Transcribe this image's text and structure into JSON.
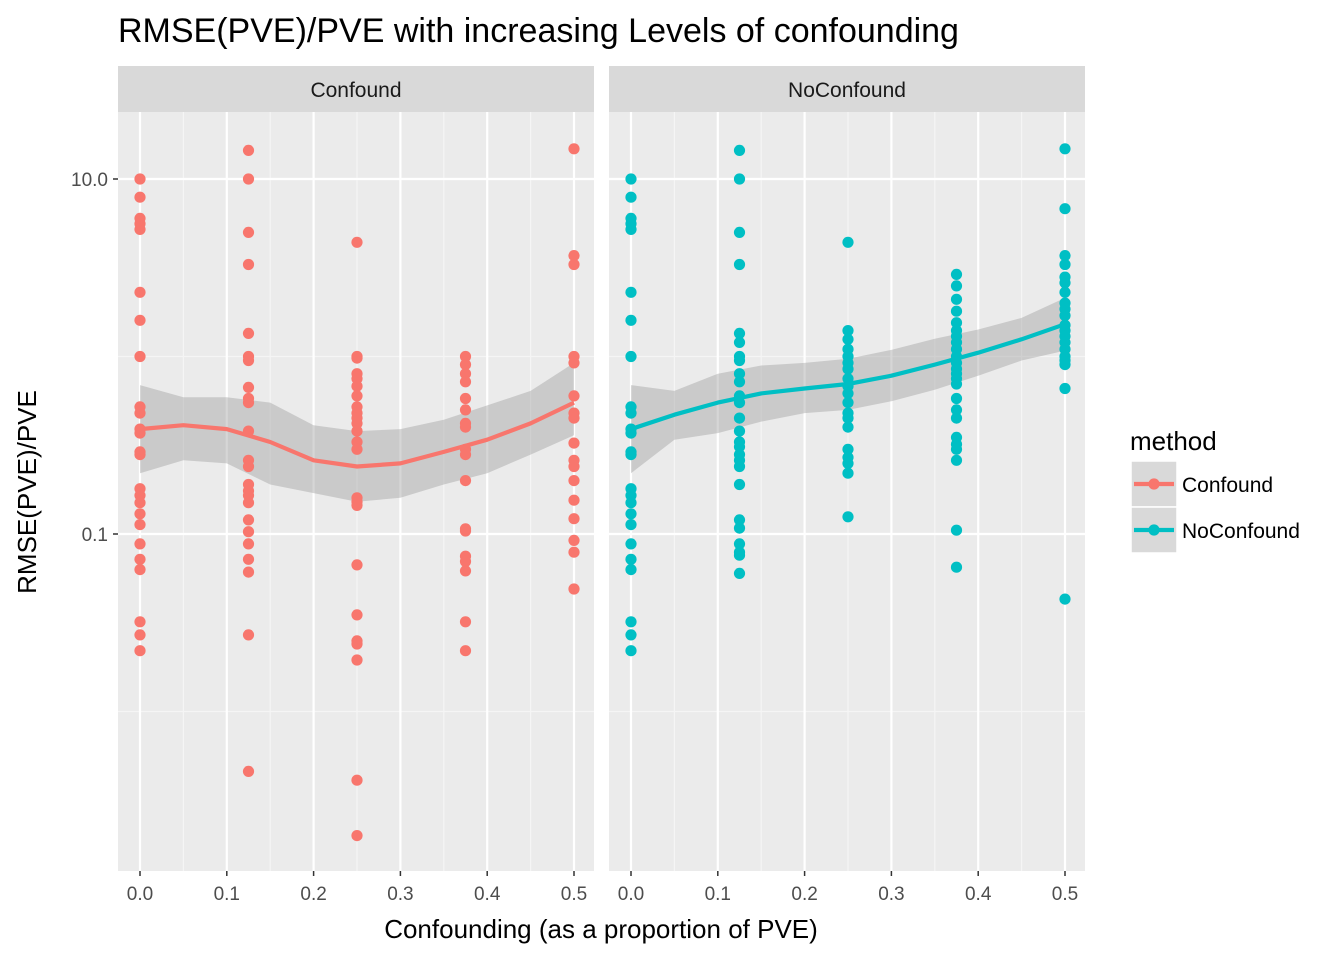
{
  "chart_data": {
    "type": "scatter",
    "title": "RMSE(PVE)/PVE with increasing Levels of confounding",
    "xlabel": "Confounding (as a proportion of PVE)",
    "ylabel": "RMSE(PVE)/PVE",
    "y_scale": "log10",
    "ylim": [
      0.0017,
      20
    ],
    "xlim": [
      -0.025,
      0.525
    ],
    "x_ticks": [
      "0.0",
      "0.1",
      "0.2",
      "0.3",
      "0.4",
      "0.5"
    ],
    "y_ticks": [
      "10.0",
      "0.1"
    ],
    "grid": true,
    "smooth_trend": true,
    "legend": {
      "title": "method",
      "position": "right"
    },
    "colors": {
      "Confound": "#F8766D",
      "NoConfound": "#00BFC4"
    },
    "panels": [
      {
        "label": "Confound",
        "color": "#F8766D",
        "points": [
          {
            "x": 0,
            "y": 10.0
          },
          {
            "x": 0,
            "y": 7.9
          },
          {
            "x": 0,
            "y": 6.0
          },
          {
            "x": 0,
            "y": 5.6
          },
          {
            "x": 0,
            "y": 5.2
          },
          {
            "x": 0,
            "y": 2.3
          },
          {
            "x": 0,
            "y": 1.6
          },
          {
            "x": 0,
            "y": 1.0
          },
          {
            "x": 0,
            "y": 0.52
          },
          {
            "x": 0,
            "y": 0.48
          },
          {
            "x": 0,
            "y": 0.39
          },
          {
            "x": 0,
            "y": 0.37
          },
          {
            "x": 0,
            "y": 0.29
          },
          {
            "x": 0,
            "y": 0.28
          },
          {
            "x": 0,
            "y": 0.18
          },
          {
            "x": 0,
            "y": 0.165
          },
          {
            "x": 0,
            "y": 0.15
          },
          {
            "x": 0,
            "y": 0.13
          },
          {
            "x": 0,
            "y": 0.113
          },
          {
            "x": 0,
            "y": 0.088
          },
          {
            "x": 0,
            "y": 0.072
          },
          {
            "x": 0,
            "y": 0.063
          },
          {
            "x": 0,
            "y": 0.032
          },
          {
            "x": 0,
            "y": 0.027
          },
          {
            "x": 0,
            "y": 0.022
          },
          {
            "x": 0.125,
            "y": 14.5
          },
          {
            "x": 0.125,
            "y": 10.0
          },
          {
            "x": 0.125,
            "y": 5.0
          },
          {
            "x": 0.125,
            "y": 3.3
          },
          {
            "x": 0.125,
            "y": 1.35
          },
          {
            "x": 0.125,
            "y": 1.0
          },
          {
            "x": 0.125,
            "y": 0.95
          },
          {
            "x": 0.125,
            "y": 0.67
          },
          {
            "x": 0.125,
            "y": 0.58
          },
          {
            "x": 0.125,
            "y": 0.55
          },
          {
            "x": 0.125,
            "y": 0.38
          },
          {
            "x": 0.125,
            "y": 0.26
          },
          {
            "x": 0.125,
            "y": 0.24
          },
          {
            "x": 0.125,
            "y": 0.19
          },
          {
            "x": 0.125,
            "y": 0.175
          },
          {
            "x": 0.125,
            "y": 0.165
          },
          {
            "x": 0.125,
            "y": 0.15
          },
          {
            "x": 0.125,
            "y": 0.12
          },
          {
            "x": 0.125,
            "y": 0.103
          },
          {
            "x": 0.125,
            "y": 0.088
          },
          {
            "x": 0.125,
            "y": 0.072
          },
          {
            "x": 0.125,
            "y": 0.061
          },
          {
            "x": 0.125,
            "y": 0.027
          },
          {
            "x": 0.125,
            "y": 0.0046
          },
          {
            "x": 0.25,
            "y": 4.4
          },
          {
            "x": 0.25,
            "y": 1.0
          },
          {
            "x": 0.25,
            "y": 0.98
          },
          {
            "x": 0.25,
            "y": 0.8
          },
          {
            "x": 0.25,
            "y": 0.75
          },
          {
            "x": 0.25,
            "y": 0.68
          },
          {
            "x": 0.25,
            "y": 0.6
          },
          {
            "x": 0.25,
            "y": 0.52
          },
          {
            "x": 0.25,
            "y": 0.48
          },
          {
            "x": 0.25,
            "y": 0.45
          },
          {
            "x": 0.25,
            "y": 0.42
          },
          {
            "x": 0.25,
            "y": 0.38
          },
          {
            "x": 0.25,
            "y": 0.33
          },
          {
            "x": 0.25,
            "y": 0.3
          },
          {
            "x": 0.25,
            "y": 0.16
          },
          {
            "x": 0.25,
            "y": 0.152
          },
          {
            "x": 0.25,
            "y": 0.145
          },
          {
            "x": 0.25,
            "y": 0.067
          },
          {
            "x": 0.25,
            "y": 0.035
          },
          {
            "x": 0.25,
            "y": 0.025
          },
          {
            "x": 0.25,
            "y": 0.024
          },
          {
            "x": 0.25,
            "y": 0.0195
          },
          {
            "x": 0.25,
            "y": 0.0041
          },
          {
            "x": 0.25,
            "y": 0.002
          },
          {
            "x": 0.375,
            "y": 1.0
          },
          {
            "x": 0.375,
            "y": 0.9
          },
          {
            "x": 0.375,
            "y": 0.8
          },
          {
            "x": 0.375,
            "y": 0.72
          },
          {
            "x": 0.375,
            "y": 0.58
          },
          {
            "x": 0.375,
            "y": 0.5
          },
          {
            "x": 0.375,
            "y": 0.42
          },
          {
            "x": 0.375,
            "y": 0.4
          },
          {
            "x": 0.375,
            "y": 0.3
          },
          {
            "x": 0.375,
            "y": 0.28
          },
          {
            "x": 0.375,
            "y": 0.2
          },
          {
            "x": 0.375,
            "y": 0.107
          },
          {
            "x": 0.375,
            "y": 0.104
          },
          {
            "x": 0.375,
            "y": 0.075
          },
          {
            "x": 0.375,
            "y": 0.07
          },
          {
            "x": 0.375,
            "y": 0.062
          },
          {
            "x": 0.375,
            "y": 0.032
          },
          {
            "x": 0.375,
            "y": 0.022
          },
          {
            "x": 0.5,
            "y": 14.8
          },
          {
            "x": 0.5,
            "y": 3.7
          },
          {
            "x": 0.5,
            "y": 3.3
          },
          {
            "x": 0.5,
            "y": 1.0
          },
          {
            "x": 0.5,
            "y": 0.92
          },
          {
            "x": 0.5,
            "y": 0.6
          },
          {
            "x": 0.5,
            "y": 0.48
          },
          {
            "x": 0.5,
            "y": 0.45
          },
          {
            "x": 0.5,
            "y": 0.325
          },
          {
            "x": 0.5,
            "y": 0.26
          },
          {
            "x": 0.5,
            "y": 0.24
          },
          {
            "x": 0.5,
            "y": 0.2
          },
          {
            "x": 0.5,
            "y": 0.155
          },
          {
            "x": 0.5,
            "y": 0.122
          },
          {
            "x": 0.5,
            "y": 0.092
          },
          {
            "x": 0.5,
            "y": 0.079
          },
          {
            "x": 0.5,
            "y": 0.049
          }
        ],
        "smooth": {
          "x": [
            0.0,
            0.05,
            0.1,
            0.15,
            0.2,
            0.25,
            0.3,
            0.35,
            0.4,
            0.45,
            0.5
          ],
          "y": [
            0.39,
            0.41,
            0.39,
            0.33,
            0.26,
            0.24,
            0.25,
            0.29,
            0.34,
            0.42,
            0.55
          ],
          "lower": [
            0.22,
            0.26,
            0.25,
            0.19,
            0.17,
            0.152,
            0.16,
            0.19,
            0.22,
            0.28,
            0.36
          ],
          "upper": [
            0.69,
            0.59,
            0.59,
            0.55,
            0.41,
            0.38,
            0.39,
            0.44,
            0.53,
            0.64,
            0.92
          ]
        }
      },
      {
        "label": "NoConfound",
        "color": "#00BFC4",
        "points": [
          {
            "x": 0,
            "y": 10.0
          },
          {
            "x": 0,
            "y": 7.9
          },
          {
            "x": 0,
            "y": 6.0
          },
          {
            "x": 0,
            "y": 5.6
          },
          {
            "x": 0,
            "y": 5.2
          },
          {
            "x": 0,
            "y": 2.3
          },
          {
            "x": 0,
            "y": 1.6
          },
          {
            "x": 0,
            "y": 1.0
          },
          {
            "x": 0,
            "y": 0.52
          },
          {
            "x": 0,
            "y": 0.48
          },
          {
            "x": 0,
            "y": 0.39
          },
          {
            "x": 0,
            "y": 0.37
          },
          {
            "x": 0,
            "y": 0.29
          },
          {
            "x": 0,
            "y": 0.28
          },
          {
            "x": 0,
            "y": 0.18
          },
          {
            "x": 0,
            "y": 0.165
          },
          {
            "x": 0,
            "y": 0.15
          },
          {
            "x": 0,
            "y": 0.13
          },
          {
            "x": 0,
            "y": 0.113
          },
          {
            "x": 0,
            "y": 0.088
          },
          {
            "x": 0,
            "y": 0.072
          },
          {
            "x": 0,
            "y": 0.063
          },
          {
            "x": 0,
            "y": 0.032
          },
          {
            "x": 0,
            "y": 0.027
          },
          {
            "x": 0,
            "y": 0.022
          },
          {
            "x": 0.125,
            "y": 14.5
          },
          {
            "x": 0.125,
            "y": 10.0
          },
          {
            "x": 0.125,
            "y": 5.0
          },
          {
            "x": 0.125,
            "y": 3.3
          },
          {
            "x": 0.125,
            "y": 1.35
          },
          {
            "x": 0.125,
            "y": 1.2
          },
          {
            "x": 0.125,
            "y": 1.0
          },
          {
            "x": 0.125,
            "y": 0.95
          },
          {
            "x": 0.125,
            "y": 0.8
          },
          {
            "x": 0.125,
            "y": 0.72
          },
          {
            "x": 0.125,
            "y": 0.6
          },
          {
            "x": 0.125,
            "y": 0.55
          },
          {
            "x": 0.125,
            "y": 0.45
          },
          {
            "x": 0.125,
            "y": 0.38
          },
          {
            "x": 0.125,
            "y": 0.33
          },
          {
            "x": 0.125,
            "y": 0.31
          },
          {
            "x": 0.125,
            "y": 0.28
          },
          {
            "x": 0.125,
            "y": 0.26
          },
          {
            "x": 0.125,
            "y": 0.24
          },
          {
            "x": 0.125,
            "y": 0.19
          },
          {
            "x": 0.125,
            "y": 0.12
          },
          {
            "x": 0.125,
            "y": 0.108
          },
          {
            "x": 0.125,
            "y": 0.088
          },
          {
            "x": 0.125,
            "y": 0.079
          },
          {
            "x": 0.125,
            "y": 0.076
          },
          {
            "x": 0.125,
            "y": 0.06
          },
          {
            "x": 0.25,
            "y": 4.4
          },
          {
            "x": 0.25,
            "y": 1.4
          },
          {
            "x": 0.25,
            "y": 1.25
          },
          {
            "x": 0.25,
            "y": 1.1
          },
          {
            "x": 0.25,
            "y": 1.0
          },
          {
            "x": 0.25,
            "y": 0.92
          },
          {
            "x": 0.25,
            "y": 0.85
          },
          {
            "x": 0.25,
            "y": 0.75
          },
          {
            "x": 0.25,
            "y": 0.68
          },
          {
            "x": 0.25,
            "y": 0.62
          },
          {
            "x": 0.25,
            "y": 0.55
          },
          {
            "x": 0.25,
            "y": 0.48
          },
          {
            "x": 0.25,
            "y": 0.45
          },
          {
            "x": 0.25,
            "y": 0.4
          },
          {
            "x": 0.25,
            "y": 0.3
          },
          {
            "x": 0.25,
            "y": 0.27
          },
          {
            "x": 0.25,
            "y": 0.25
          },
          {
            "x": 0.25,
            "y": 0.22
          },
          {
            "x": 0.25,
            "y": 0.125
          },
          {
            "x": 0.375,
            "y": 2.9
          },
          {
            "x": 0.375,
            "y": 2.5
          },
          {
            "x": 0.375,
            "y": 2.1
          },
          {
            "x": 0.375,
            "y": 1.8
          },
          {
            "x": 0.375,
            "y": 1.55
          },
          {
            "x": 0.375,
            "y": 1.4
          },
          {
            "x": 0.375,
            "y": 1.3
          },
          {
            "x": 0.375,
            "y": 1.2
          },
          {
            "x": 0.375,
            "y": 1.1
          },
          {
            "x": 0.375,
            "y": 1.0
          },
          {
            "x": 0.375,
            "y": 0.92
          },
          {
            "x": 0.375,
            "y": 0.85
          },
          {
            "x": 0.375,
            "y": 0.8
          },
          {
            "x": 0.375,
            "y": 0.75
          },
          {
            "x": 0.375,
            "y": 0.7
          },
          {
            "x": 0.375,
            "y": 0.58
          },
          {
            "x": 0.375,
            "y": 0.5
          },
          {
            "x": 0.375,
            "y": 0.45
          },
          {
            "x": 0.375,
            "y": 0.35
          },
          {
            "x": 0.375,
            "y": 0.32
          },
          {
            "x": 0.375,
            "y": 0.3
          },
          {
            "x": 0.375,
            "y": 0.26
          },
          {
            "x": 0.375,
            "y": 0.105
          },
          {
            "x": 0.375,
            "y": 0.065
          },
          {
            "x": 0.5,
            "y": 14.8
          },
          {
            "x": 0.5,
            "y": 6.8
          },
          {
            "x": 0.5,
            "y": 3.7
          },
          {
            "x": 0.5,
            "y": 3.3
          },
          {
            "x": 0.5,
            "y": 2.8
          },
          {
            "x": 0.5,
            "y": 2.6
          },
          {
            "x": 0.5,
            "y": 2.3
          },
          {
            "x": 0.5,
            "y": 2.0
          },
          {
            "x": 0.5,
            "y": 1.85
          },
          {
            "x": 0.5,
            "y": 1.7
          },
          {
            "x": 0.5,
            "y": 1.5
          },
          {
            "x": 0.5,
            "y": 1.4
          },
          {
            "x": 0.5,
            "y": 1.3
          },
          {
            "x": 0.5,
            "y": 1.2
          },
          {
            "x": 0.5,
            "y": 1.1
          },
          {
            "x": 0.5,
            "y": 1.0
          },
          {
            "x": 0.5,
            "y": 0.95
          },
          {
            "x": 0.5,
            "y": 0.9
          },
          {
            "x": 0.5,
            "y": 0.66
          },
          {
            "x": 0.5,
            "y": 0.043
          }
        ],
        "smooth": {
          "x": [
            0.0,
            0.05,
            0.1,
            0.15,
            0.2,
            0.25,
            0.3,
            0.35,
            0.4,
            0.45,
            0.5
          ],
          "y": [
            0.39,
            0.47,
            0.55,
            0.62,
            0.66,
            0.7,
            0.78,
            0.9,
            1.05,
            1.25,
            1.52
          ],
          "lower": [
            0.22,
            0.34,
            0.37,
            0.43,
            0.48,
            0.5,
            0.56,
            0.65,
            0.78,
            0.95,
            1.08
          ],
          "upper": [
            0.69,
            0.64,
            0.8,
            0.89,
            0.92,
            0.97,
            1.09,
            1.26,
            1.42,
            1.65,
            2.14
          ]
        }
      }
    ]
  }
}
